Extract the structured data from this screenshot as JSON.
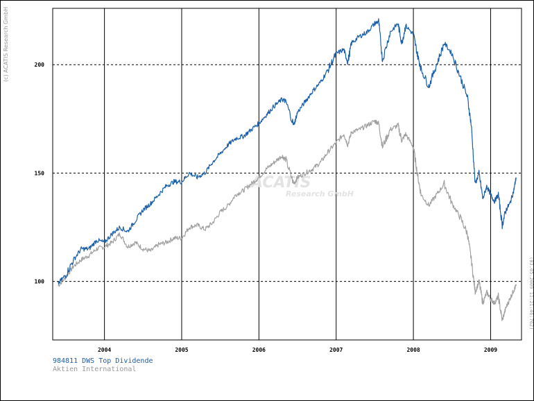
{
  "copyright": "(c) ACATIS Research GmbH",
  "watermark": {
    "line1": "ACATIS",
    "line2": "Research GmbH"
  },
  "timestamp": "(03.05.2009 11:21:46:762)",
  "colors": {
    "fund": "#1a5fa8",
    "index": "#a0a0a0"
  },
  "chart_data": {
    "type": "line",
    "title": "",
    "xlabel": "",
    "ylabel": "",
    "xlim": [
      2003.33,
      2009.4
    ],
    "ylim": [
      73,
      226
    ],
    "grid": {
      "horizontal_dashed": [
        100,
        150,
        200
      ],
      "vertical_solid": true
    },
    "legend_position": "bottom-left",
    "x_tick_labels": [
      "2004",
      "2005",
      "2006",
      "2007",
      "2008",
      "2009"
    ],
    "y_tick_labels": [
      "100",
      "150",
      "200"
    ],
    "x_ticks": [
      2004,
      2005,
      2006,
      2007,
      2008,
      2009
    ],
    "y_ticks": [
      100,
      150,
      200
    ],
    "series": [
      {
        "name": "984811 DWS Top Dividende",
        "color": "#1a5fa8",
        "x": [
          2003.4,
          2003.5,
          2003.6,
          2003.7,
          2003.8,
          2003.9,
          2004.0,
          2004.1,
          2004.2,
          2004.3,
          2004.4,
          2004.5,
          2004.6,
          2004.7,
          2004.8,
          2004.9,
          2005.0,
          2005.1,
          2005.2,
          2005.3,
          2005.4,
          2005.5,
          2005.6,
          2005.7,
          2005.8,
          2005.9,
          2006.0,
          2006.1,
          2006.2,
          2006.3,
          2006.35,
          2006.45,
          2006.5,
          2006.6,
          2006.7,
          2006.8,
          2006.9,
          2007.0,
          2007.1,
          2007.15,
          2007.2,
          2007.3,
          2007.4,
          2007.5,
          2007.55,
          2007.6,
          2007.7,
          2007.8,
          2007.85,
          2007.9,
          2008.0,
          2008.05,
          2008.1,
          2008.2,
          2008.3,
          2008.4,
          2008.5,
          2008.6,
          2008.7,
          2008.75,
          2008.8,
          2008.85,
          2008.9,
          2008.95,
          2009.0,
          2009.05,
          2009.1,
          2009.15,
          2009.2,
          2009.25,
          2009.3,
          2009.33
        ],
        "values": [
          99,
          103,
          110,
          115,
          115,
          119,
          118,
          122,
          125,
          123,
          128,
          133,
          136,
          140,
          144,
          146,
          146,
          150,
          148,
          150,
          155,
          159,
          163,
          166,
          167,
          170,
          173,
          177,
          181,
          184,
          183,
          172,
          178,
          183,
          188,
          192,
          198,
          205,
          207,
          201,
          210,
          213,
          215,
          219,
          220,
          202,
          215,
          219,
          210,
          218,
          214,
          205,
          198,
          190,
          200,
          210,
          205,
          195,
          185,
          172,
          145,
          150,
          138,
          144,
          140,
          137,
          140,
          126,
          133,
          136,
          142,
          148
        ]
      },
      {
        "name": "Aktien International",
        "color": "#a0a0a0",
        "x": [
          2003.4,
          2003.5,
          2003.6,
          2003.7,
          2003.8,
          2003.9,
          2004.0,
          2004.1,
          2004.2,
          2004.3,
          2004.4,
          2004.5,
          2004.6,
          2004.7,
          2004.8,
          2004.9,
          2005.0,
          2005.1,
          2005.2,
          2005.3,
          2005.4,
          2005.5,
          2005.6,
          2005.7,
          2005.8,
          2005.9,
          2006.0,
          2006.1,
          2006.2,
          2006.3,
          2006.35,
          2006.45,
          2006.5,
          2006.6,
          2006.7,
          2006.8,
          2006.9,
          2007.0,
          2007.1,
          2007.15,
          2007.2,
          2007.3,
          2007.4,
          2007.5,
          2007.55,
          2007.6,
          2007.7,
          2007.8,
          2007.85,
          2007.9,
          2008.0,
          2008.05,
          2008.1,
          2008.2,
          2008.3,
          2008.4,
          2008.5,
          2008.6,
          2008.7,
          2008.75,
          2008.8,
          2008.85,
          2008.9,
          2008.95,
          2009.0,
          2009.05,
          2009.1,
          2009.15,
          2009.2,
          2009.25,
          2009.3,
          2009.33
        ],
        "values": [
          98,
          102,
          107,
          110,
          112,
          115,
          116,
          118,
          122,
          116,
          118,
          115,
          114,
          117,
          118,
          120,
          120,
          125,
          126,
          124,
          127,
          132,
          135,
          140,
          142,
          145,
          148,
          152,
          155,
          158,
          156,
          145,
          148,
          150,
          152,
          155,
          160,
          164,
          168,
          163,
          169,
          170,
          172,
          174,
          173,
          162,
          170,
          172,
          165,
          168,
          162,
          150,
          140,
          135,
          140,
          145,
          136,
          130,
          122,
          110,
          95,
          100,
          90,
          95,
          92,
          90,
          93,
          82,
          88,
          92,
          96,
          98
        ]
      }
    ]
  }
}
